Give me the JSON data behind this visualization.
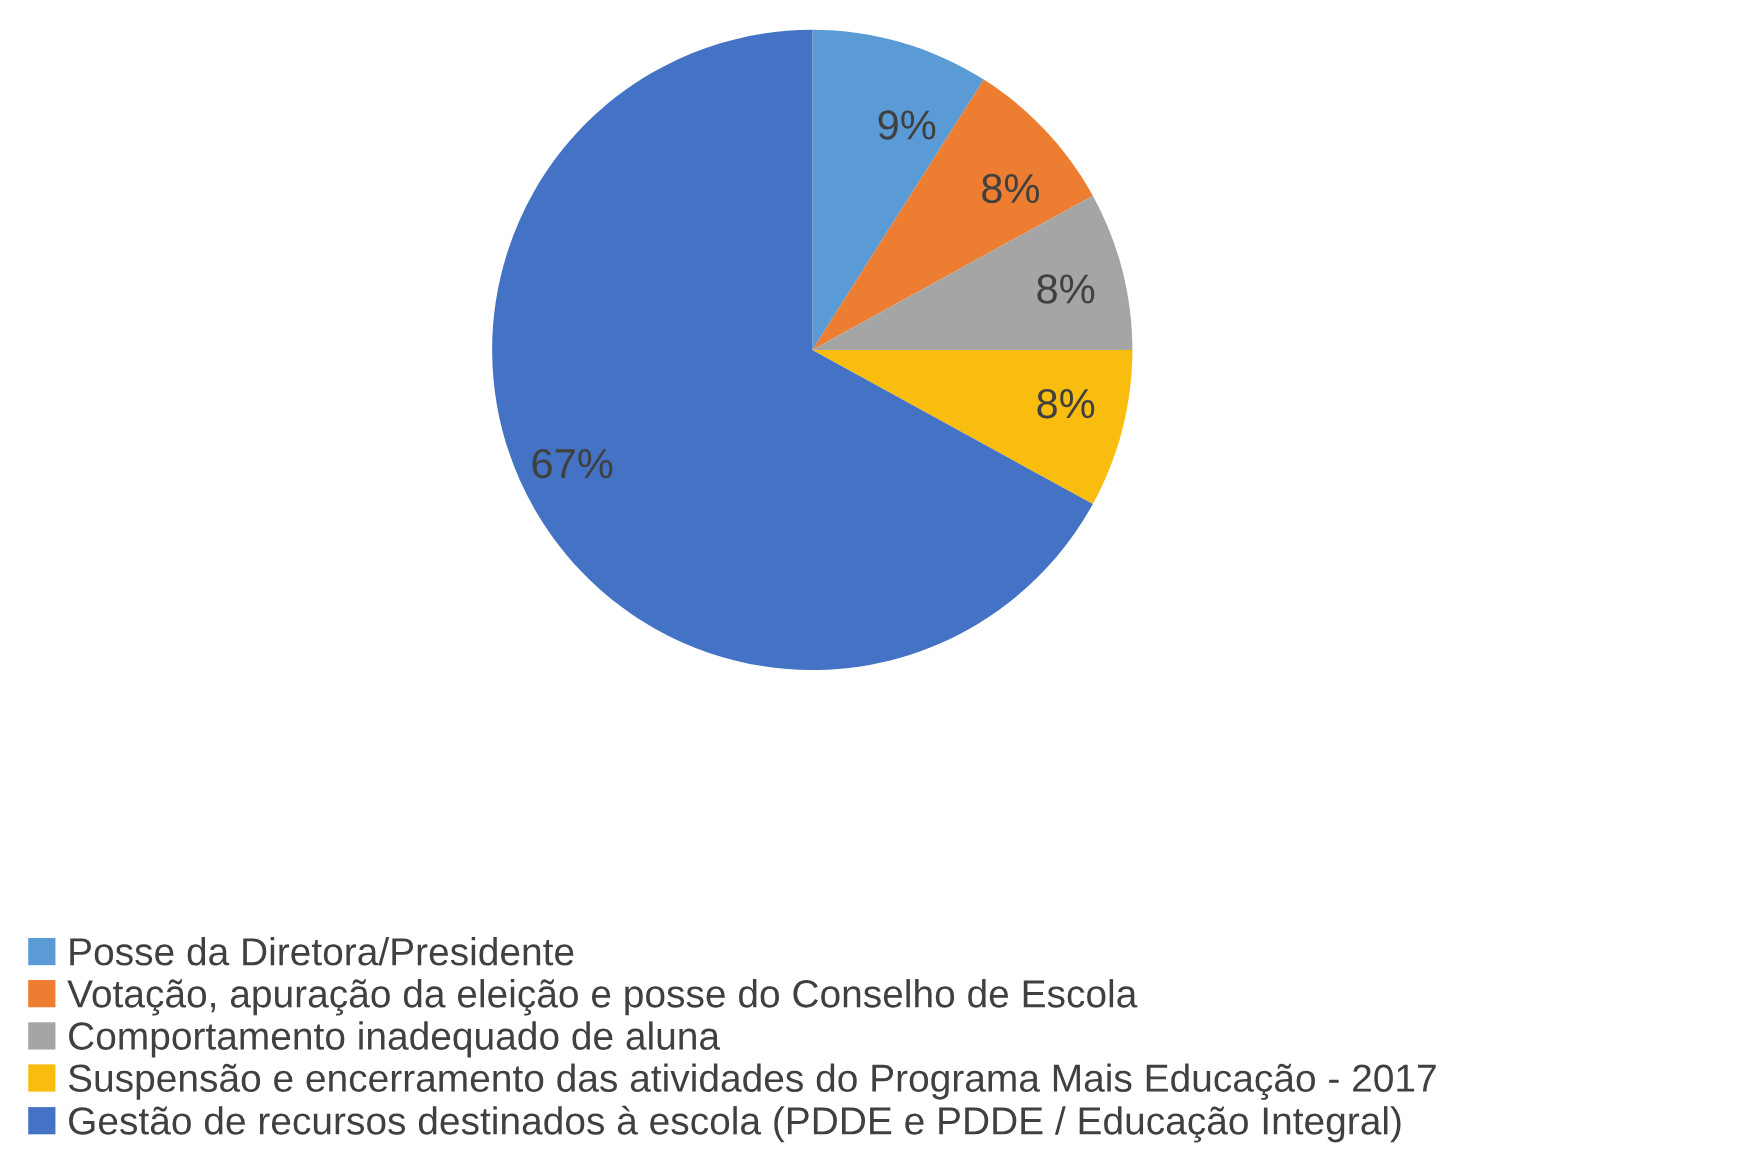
{
  "chart_data": {
    "type": "pie",
    "categories": [
      "Posse da Diretora/Presidente",
      "Votação, apuração da eleição e posse do Conselho de Escola",
      "Comportamento inadequado de aluna",
      "Suspensão e encerramento das atividades do Programa Mais Educação - 2017",
      "Gestão de recursos destinados à escola (PDDE e PDDE / Educação Integral)"
    ],
    "values": [
      9,
      8,
      8,
      8,
      67
    ],
    "colors": [
      "#5b9bd5",
      "#ed7d31",
      "#a5a5a5",
      "#f9bd10",
      "#4472c4"
    ],
    "value_labels": [
      "9%",
      "8%",
      "8%",
      "8%",
      "67%"
    ],
    "legend": "bottom left"
  }
}
